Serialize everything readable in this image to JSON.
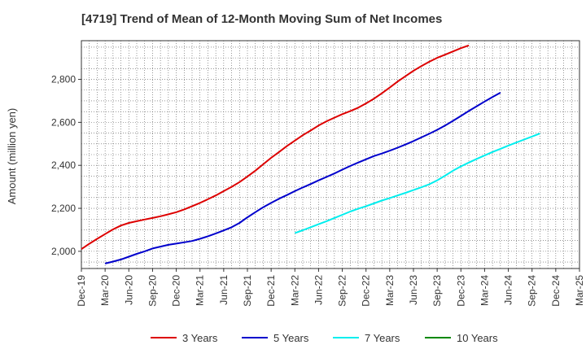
{
  "chart_data": {
    "type": "line",
    "title": "[4719]  Trend of Mean of 12-Month Moving Sum of Net Incomes",
    "ylabel": "Amount (million yen)",
    "xlabel": "",
    "x_tick_labels": [
      "Dec-19",
      "Mar-20",
      "Jun-20",
      "Sep-20",
      "Dec-20",
      "Mar-21",
      "Jun-21",
      "Sep-21",
      "Dec-21",
      "Mar-22",
      "Jun-22",
      "Sep-22",
      "Dec-22",
      "Mar-23",
      "Jun-23",
      "Sep-23",
      "Dec-23",
      "Mar-24",
      "Jun-24",
      "Sep-24",
      "Dec-24",
      "Mar-25"
    ],
    "y_ticks": [
      2000,
      2200,
      2400,
      2600,
      2800
    ],
    "ylim": [
      1920,
      2980
    ],
    "grid": true,
    "legend_position": "bottom",
    "series": [
      {
        "name": "3 Years",
        "color": "#dd0000",
        "start_index": 0,
        "values": [
          2010,
          2035,
          2058,
          2080,
          2102,
          2120,
          2132,
          2140,
          2148,
          2155,
          2163,
          2172,
          2182,
          2195,
          2210,
          2225,
          2242,
          2260,
          2280,
          2300,
          2322,
          2348,
          2375,
          2405,
          2435,
          2462,
          2490,
          2515,
          2540,
          2562,
          2585,
          2605,
          2622,
          2638,
          2652,
          2668,
          2688,
          2710,
          2735,
          2762,
          2790,
          2815,
          2840,
          2862,
          2882,
          2900,
          2915,
          2930,
          2945,
          2958
        ]
      },
      {
        "name": "5 Years",
        "color": "#0000cc",
        "start_index": 3,
        "values": [
          1943,
          1952,
          1962,
          1975,
          1988,
          2000,
          2013,
          2022,
          2030,
          2036,
          2042,
          2048,
          2058,
          2070,
          2083,
          2097,
          2112,
          2132,
          2158,
          2182,
          2205,
          2225,
          2245,
          2262,
          2280,
          2297,
          2313,
          2330,
          2346,
          2362,
          2380,
          2397,
          2413,
          2428,
          2443,
          2455,
          2468,
          2482,
          2497,
          2513,
          2530,
          2547,
          2565,
          2585,
          2607,
          2630,
          2653,
          2675,
          2697,
          2718,
          2738
        ]
      },
      {
        "name": "7 Years",
        "color": "#00eeee",
        "start_index": 27,
        "values": [
          2085,
          2098,
          2112,
          2126,
          2140,
          2155,
          2170,
          2185,
          2198,
          2210,
          2223,
          2236,
          2248,
          2260,
          2272,
          2285,
          2298,
          2312,
          2330,
          2352,
          2375,
          2395,
          2413,
          2430,
          2446,
          2462,
          2477,
          2492,
          2506,
          2520,
          2534,
          2548
        ]
      },
      {
        "name": "10 Years",
        "color": "#008800",
        "start_index": 0,
        "values": []
      }
    ]
  }
}
